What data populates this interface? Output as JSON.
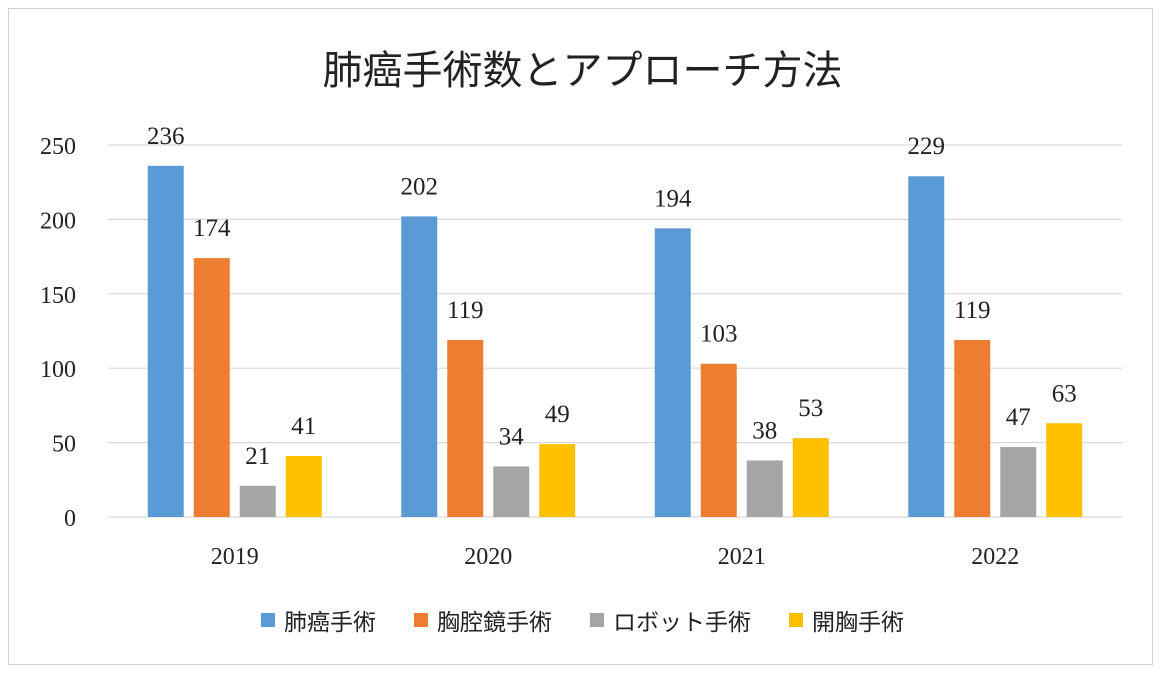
{
  "chart_data": {
    "type": "bar",
    "title": "肺癌手術数とアプローチ方法",
    "categories": [
      "2019",
      "2020",
      "2021",
      "2022"
    ],
    "ylim": [
      0,
      250
    ],
    "yticks": [
      0,
      50,
      100,
      150,
      200,
      250
    ],
    "grid": true,
    "legend_position": "bottom",
    "series": [
      {
        "name": "肺癌手術",
        "color": "#5B9BD5",
        "values": [
          236,
          202,
          194,
          229
        ]
      },
      {
        "name": "胸腔鏡手術",
        "color": "#ED7D31",
        "values": [
          174,
          119,
          103,
          119
        ]
      },
      {
        "name": "ロボット手術",
        "color": "#A5A5A5",
        "values": [
          21,
          34,
          38,
          47
        ]
      },
      {
        "name": "開胸手術",
        "color": "#FFC000",
        "values": [
          41,
          49,
          53,
          63
        ]
      }
    ]
  }
}
